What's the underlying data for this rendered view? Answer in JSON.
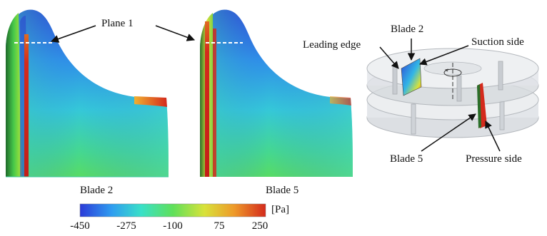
{
  "panels": [
    {
      "caption": "Blade 2"
    },
    {
      "caption": "Blade 5"
    }
  ],
  "annotations": {
    "plane": "Plane 1",
    "leading_edge": "Leading edge",
    "blade2": "Blade 2",
    "suction_side": "Suction side",
    "blade5": "Blade 5",
    "pressure_side": "Pressure side"
  },
  "colorbar": {
    "unit": "[Pa]",
    "ticks": [
      "-450",
      "-275",
      "-100",
      "75",
      "250"
    ],
    "colors": [
      "#2b3bd8",
      "#2f9cf0",
      "#39e0c8",
      "#5fe05a",
      "#d8e23a",
      "#ee9a2a",
      "#d42a1c"
    ]
  }
}
